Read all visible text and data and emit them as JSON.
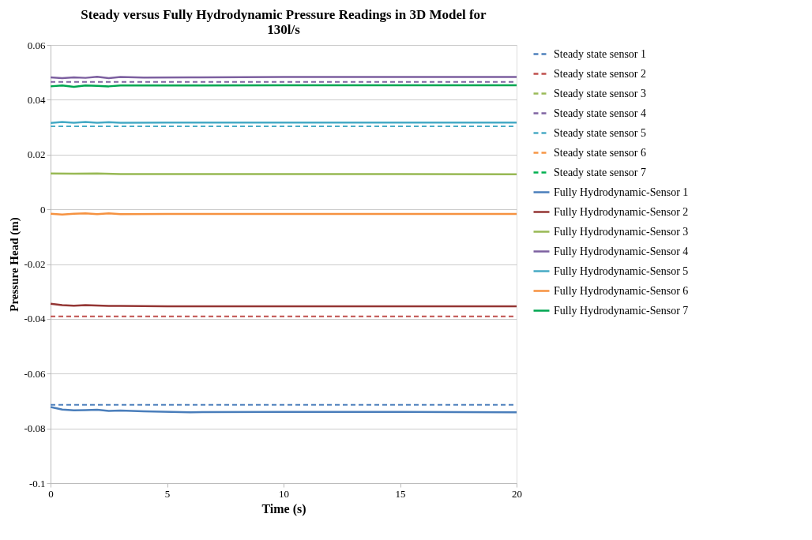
{
  "chart_data": {
    "type": "line",
    "title": "Steady versus Fully Hydrodynamic Pressure Readings in 3D Model for 130l/s",
    "xlabel": "Time (s)",
    "ylabel": "Pressure Head (m)",
    "xlim": [
      0,
      20
    ],
    "xticks": [
      0,
      5,
      10,
      15,
      20
    ],
    "ylim": [
      -0.1,
      0.06
    ],
    "yticks": [
      -0.1,
      -0.08,
      -0.06,
      -0.04,
      -0.02,
      0,
      0.02,
      0.04,
      0.06
    ],
    "grid": "y",
    "legend": "right",
    "series": [
      {
        "name": "Steady state sensor 1",
        "color": "#4f81bd",
        "line_style": "dashed",
        "x": [
          0,
          20
        ],
        "values": [
          -0.0714,
          -0.0714
        ]
      },
      {
        "name": "Steady state sensor 2",
        "color": "#c0504d",
        "line_style": "dashed",
        "x": [
          0,
          20
        ],
        "values": [
          -0.0391,
          -0.0391
        ]
      },
      {
        "name": "Steady state sensor 3",
        "color": "#9bbb59",
        "line_style": "dashed"
      },
      {
        "name": "Steady state sensor 4",
        "color": "#8064a2",
        "line_style": "dashed",
        "x": [
          0,
          20
        ],
        "values": [
          0.0465,
          0.0465
        ]
      },
      {
        "name": "Steady state sensor 5",
        "color": "#4bacc6",
        "line_style": "dashed",
        "x": [
          0,
          20
        ],
        "values": [
          0.0303,
          0.0303
        ]
      },
      {
        "name": "Steady state sensor 6",
        "color": "#f79646",
        "line_style": "dashed"
      },
      {
        "name": "Steady state sensor 7",
        "color": "#00b050",
        "line_style": "dashed"
      },
      {
        "name": "Fully Hydrodynamic-Sensor 1",
        "color": "#4a7ebb",
        "line_style": "solid",
        "x": [
          0,
          0.5,
          1,
          1.5,
          2,
          2.5,
          3,
          4,
          6,
          10,
          15,
          20
        ],
        "values": [
          -0.0722,
          -0.0731,
          -0.0734,
          -0.0733,
          -0.0732,
          -0.0736,
          -0.0735,
          -0.0738,
          -0.0741,
          -0.074,
          -0.074,
          -0.0741
        ]
      },
      {
        "name": "Fully Hydrodynamic-Sensor 2",
        "color": "#943634",
        "line_style": "solid",
        "x": [
          0,
          0.5,
          1,
          1.5,
          2,
          2.5,
          3,
          5,
          10,
          20
        ],
        "values": [
          -0.0345,
          -0.035,
          -0.0352,
          -0.035,
          -0.0351,
          -0.0353,
          -0.0353,
          -0.0354,
          -0.0354,
          -0.0354
        ]
      },
      {
        "name": "Fully Hydrodynamic-Sensor 3",
        "color": "#98b954",
        "line_style": "solid",
        "x": [
          0,
          1,
          2,
          3,
          5,
          10,
          20
        ],
        "values": [
          0.0131,
          0.013,
          0.0131,
          0.0129,
          0.0129,
          0.0129,
          0.0128
        ]
      },
      {
        "name": "Fully Hydrodynamic-Sensor 4",
        "color": "#7d60a0",
        "line_style": "solid",
        "x": [
          0,
          0.5,
          1,
          1.5,
          2,
          2.5,
          3,
          4,
          6,
          10,
          20
        ],
        "values": [
          0.0482,
          0.0479,
          0.0482,
          0.048,
          0.0484,
          0.0479,
          0.0483,
          0.0481,
          0.0482,
          0.0483,
          0.0483
        ]
      },
      {
        "name": "Fully Hydrodynamic-Sensor 5",
        "color": "#46aac5",
        "line_style": "solid",
        "x": [
          0,
          0.5,
          1,
          1.5,
          2,
          2.5,
          3,
          5,
          10,
          20
        ],
        "values": [
          0.0315,
          0.0319,
          0.0316,
          0.0319,
          0.0316,
          0.0318,
          0.0316,
          0.0317,
          0.0317,
          0.0317
        ]
      },
      {
        "name": "Fully Hydrodynamic-Sensor 6",
        "color": "#f69240",
        "line_style": "solid",
        "x": [
          0,
          0.5,
          1,
          1.5,
          2,
          2.5,
          3,
          5,
          10,
          20
        ],
        "values": [
          -0.0016,
          -0.0019,
          -0.0016,
          -0.0015,
          -0.0018,
          -0.0015,
          -0.0018,
          -0.0017,
          -0.0017,
          -0.0017
        ]
      },
      {
        "name": "Fully Hydrodynamic-Sensor 7",
        "color": "#00a651",
        "line_style": "solid",
        "x": [
          0,
          0.5,
          1,
          1.5,
          2,
          2.5,
          3,
          5,
          10,
          20
        ],
        "values": [
          0.0449,
          0.0452,
          0.0447,
          0.0452,
          0.0451,
          0.0449,
          0.0452,
          0.0452,
          0.0453,
          0.0453
        ]
      }
    ]
  }
}
